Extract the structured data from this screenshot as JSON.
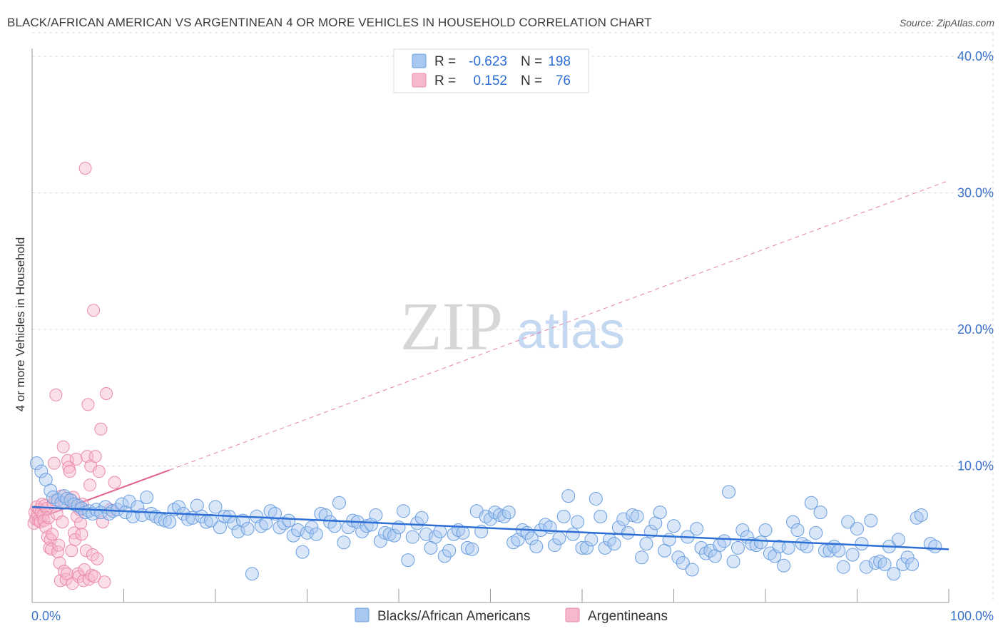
{
  "title": "BLACK/AFRICAN AMERICAN VS ARGENTINEAN 4 OR MORE VEHICLES IN HOUSEHOLD CORRELATION CHART",
  "source": "Source: ZipAtlas.com",
  "watermark": {
    "zip": "ZIP",
    "atlas": "atlas"
  },
  "colors": {
    "blue_fill": "#a9c8f0",
    "blue_stroke": "#6a9ee0",
    "blue_line": "#2e6fd6",
    "pink_fill": "#f6b8cb",
    "pink_stroke": "#ea8aa9",
    "pink_line": "#e0608a",
    "axis_text": "#3a72cc",
    "grid": "#dcdcdc"
  },
  "legend": {
    "rows": [
      {
        "r_label": "R =",
        "r_value": "-0.623",
        "n_label": "N =",
        "n_value": "198"
      },
      {
        "r_label": "R =",
        "r_value": "0.152",
        "n_label": "N =",
        "n_value": "76"
      }
    ]
  },
  "chart_data": {
    "type": "scatter",
    "title": "BLACK/AFRICAN AMERICAN VS ARGENTINEAN 4 OR MORE VEHICLES IN HOUSEHOLD CORRELATION CHART",
    "xlabel": "",
    "ylabel": "4 or more Vehicles in Household",
    "xlim": [
      0,
      100
    ],
    "ylim": [
      0,
      42
    ],
    "x_tick_labels": [
      "0.0%",
      "100.0%"
    ],
    "y_ticks": [
      10,
      20,
      30,
      40
    ],
    "y_tick_labels": [
      "10.0%",
      "20.0%",
      "30.0%",
      "40.0%"
    ],
    "grid": true,
    "legend_position": "top-center",
    "series": [
      {
        "name": "Blacks/African Americans",
        "r": -0.623,
        "n": 198,
        "trend": {
          "x": [
            0,
            100
          ],
          "y": [
            7.0,
            3.9
          ],
          "style": "solid"
        },
        "points": [
          [
            0.5,
            10.2
          ],
          [
            1.0,
            9.6
          ],
          [
            1.5,
            9.0
          ],
          [
            2.0,
            8.2
          ],
          [
            2.3,
            7.7
          ],
          [
            2.8,
            7.5
          ],
          [
            3.2,
            7.3
          ],
          [
            3.5,
            7.8
          ],
          [
            3.8,
            7.6
          ],
          [
            4.2,
            7.5
          ],
          [
            4.6,
            7.2
          ],
          [
            5.0,
            7.1
          ],
          [
            5.4,
            6.9
          ],
          [
            5.8,
            6.6
          ],
          [
            6.2,
            6.7
          ],
          [
            6.6,
            6.5
          ],
          [
            7.0,
            6.8
          ],
          [
            7.5,
            6.6
          ],
          [
            8.0,
            7.0
          ],
          [
            8.4,
            6.5
          ],
          [
            8.8,
            6.7
          ],
          [
            9.3,
            6.8
          ],
          [
            9.8,
            7.2
          ],
          [
            10.2,
            6.6
          ],
          [
            10.6,
            7.4
          ],
          [
            11.0,
            6.3
          ],
          [
            11.5,
            7.0
          ],
          [
            12.0,
            6.4
          ],
          [
            12.5,
            7.7
          ],
          [
            13.0,
            6.5
          ],
          [
            13.5,
            6.3
          ],
          [
            14.0,
            6.1
          ],
          [
            14.5,
            6.0
          ],
          [
            15.0,
            5.9
          ],
          [
            15.5,
            6.8
          ],
          [
            16.0,
            7.0
          ],
          [
            16.5,
            6.5
          ],
          [
            17.0,
            6.1
          ],
          [
            17.5,
            6.2
          ],
          [
            18.0,
            7.1
          ],
          [
            18.5,
            6.3
          ],
          [
            19.0,
            5.9
          ],
          [
            19.5,
            6.0
          ],
          [
            20.0,
            7.0
          ],
          [
            20.5,
            5.5
          ],
          [
            21.0,
            6.3
          ],
          [
            21.5,
            6.3
          ],
          [
            22.0,
            5.8
          ],
          [
            22.5,
            5.2
          ],
          [
            23.0,
            6.0
          ],
          [
            23.5,
            5.4
          ],
          [
            24.0,
            2.1
          ],
          [
            24.5,
            6.3
          ],
          [
            25.0,
            5.6
          ],
          [
            25.5,
            5.8
          ],
          [
            26.0,
            6.7
          ],
          [
            26.5,
            6.5
          ],
          [
            27.0,
            5.5
          ],
          [
            27.5,
            5.8
          ],
          [
            28.0,
            6.0
          ],
          [
            28.5,
            4.9
          ],
          [
            29.0,
            5.3
          ],
          [
            29.5,
            3.7
          ],
          [
            30.0,
            5.1
          ],
          [
            30.5,
            5.5
          ],
          [
            31.0,
            5.0
          ],
          [
            31.5,
            6.5
          ],
          [
            32.0,
            6.4
          ],
          [
            32.5,
            5.9
          ],
          [
            33.0,
            5.6
          ],
          [
            33.5,
            7.3
          ],
          [
            34.0,
            4.4
          ],
          [
            34.5,
            5.5
          ],
          [
            35.0,
            6.0
          ],
          [
            35.5,
            5.9
          ],
          [
            36.0,
            5.2
          ],
          [
            36.5,
            5.6
          ],
          [
            37.0,
            5.7
          ],
          [
            37.5,
            6.4
          ],
          [
            38.0,
            4.5
          ],
          [
            38.5,
            5.1
          ],
          [
            39.0,
            5.0
          ],
          [
            39.5,
            4.9
          ],
          [
            40.0,
            5.5
          ],
          [
            40.5,
            6.7
          ],
          [
            41.0,
            3.1
          ],
          [
            41.5,
            4.8
          ],
          [
            42.0,
            5.8
          ],
          [
            42.5,
            6.2
          ],
          [
            43.0,
            5.0
          ],
          [
            43.5,
            4.0
          ],
          [
            44.0,
            4.8
          ],
          [
            44.5,
            5.2
          ],
          [
            45.0,
            3.4
          ],
          [
            45.5,
            3.8
          ],
          [
            46.0,
            5.0
          ],
          [
            46.5,
            5.3
          ],
          [
            47.0,
            5.1
          ],
          [
            47.5,
            4.0
          ],
          [
            48.0,
            3.9
          ],
          [
            48.5,
            6.7
          ],
          [
            49.0,
            5.2
          ],
          [
            49.5,
            6.3
          ],
          [
            50.0,
            6.1
          ],
          [
            50.5,
            6.6
          ],
          [
            51.0,
            6.4
          ],
          [
            51.5,
            6.3
          ],
          [
            52.0,
            6.6
          ],
          [
            52.5,
            4.4
          ],
          [
            53.0,
            4.6
          ],
          [
            53.5,
            5.3
          ],
          [
            54.0,
            5.1
          ],
          [
            54.5,
            4.7
          ],
          [
            55.0,
            4.1
          ],
          [
            55.5,
            5.3
          ],
          [
            56.0,
            5.7
          ],
          [
            56.5,
            5.5
          ],
          [
            57.0,
            4.2
          ],
          [
            57.5,
            4.7
          ],
          [
            58.0,
            6.3
          ],
          [
            58.5,
            7.8
          ],
          [
            59.0,
            5.0
          ],
          [
            59.5,
            5.9
          ],
          [
            60.0,
            4.0
          ],
          [
            60.5,
            4.0
          ],
          [
            61.0,
            4.6
          ],
          [
            61.5,
            7.6
          ],
          [
            62.0,
            6.3
          ],
          [
            62.5,
            4.0
          ],
          [
            63.0,
            4.6
          ],
          [
            63.5,
            4.3
          ],
          [
            64.0,
            5.5
          ],
          [
            64.5,
            6.1
          ],
          [
            65.0,
            5.1
          ],
          [
            65.5,
            6.4
          ],
          [
            66.0,
            6.3
          ],
          [
            66.5,
            3.3
          ],
          [
            67.0,
            4.3
          ],
          [
            67.5,
            5.2
          ],
          [
            68.0,
            5.8
          ],
          [
            68.5,
            6.6
          ],
          [
            69.0,
            3.8
          ],
          [
            69.5,
            4.6
          ],
          [
            70.0,
            5.6
          ],
          [
            70.5,
            3.3
          ],
          [
            71.0,
            2.9
          ],
          [
            71.5,
            4.8
          ],
          [
            72.0,
            2.4
          ],
          [
            72.5,
            5.4
          ],
          [
            73.0,
            4.0
          ],
          [
            73.5,
            3.6
          ],
          [
            74.0,
            3.8
          ],
          [
            74.5,
            3.4
          ],
          [
            75.0,
            4.2
          ],
          [
            75.5,
            4.5
          ],
          [
            76.0,
            8.1
          ],
          [
            76.5,
            3.0
          ],
          [
            77.0,
            4.0
          ],
          [
            77.5,
            5.3
          ],
          [
            78.0,
            4.8
          ],
          [
            78.5,
            4.3
          ],
          [
            79.0,
            4.2
          ],
          [
            79.5,
            4.4
          ],
          [
            80.0,
            5.3
          ],
          [
            80.5,
            3.6
          ],
          [
            81.0,
            3.4
          ],
          [
            81.5,
            4.1
          ],
          [
            82.0,
            2.7
          ],
          [
            82.5,
            4.0
          ],
          [
            83.0,
            5.9
          ],
          [
            83.5,
            5.3
          ],
          [
            84.0,
            4.3
          ],
          [
            84.5,
            4.1
          ],
          [
            85.0,
            7.3
          ],
          [
            85.5,
            5.1
          ],
          [
            86.0,
            6.6
          ],
          [
            86.5,
            3.8
          ],
          [
            87.0,
            3.8
          ],
          [
            87.5,
            4.1
          ],
          [
            88.0,
            3.8
          ],
          [
            88.5,
            2.6
          ],
          [
            89.0,
            5.9
          ],
          [
            89.5,
            3.5
          ],
          [
            90.0,
            5.4
          ],
          [
            90.5,
            4.3
          ],
          [
            91.0,
            2.6
          ],
          [
            91.5,
            6.0
          ],
          [
            92.0,
            2.9
          ],
          [
            92.5,
            3.0
          ],
          [
            93.0,
            2.8
          ],
          [
            93.5,
            4.1
          ],
          [
            94.0,
            2.1
          ],
          [
            94.5,
            4.6
          ],
          [
            95.0,
            2.8
          ],
          [
            95.5,
            3.3
          ],
          [
            96.0,
            2.8
          ],
          [
            96.5,
            6.2
          ],
          [
            97.0,
            6.4
          ],
          [
            98.0,
            4.3
          ],
          [
            98.5,
            4.1
          ]
        ]
      },
      {
        "name": "Argentineans",
        "r": 0.152,
        "n": 76,
        "trend_solid": {
          "x": [
            0,
            15
          ],
          "y": [
            6.0,
            9.7
          ]
        },
        "trend_dashed": {
          "x": [
            15,
            100
          ],
          "y": [
            9.7,
            30.9
          ]
        },
        "points": [
          [
            0.2,
            5.8
          ],
          [
            0.3,
            6.6
          ],
          [
            0.4,
            6.1
          ],
          [
            0.5,
            7.0
          ],
          [
            0.6,
            6.5
          ],
          [
            0.7,
            6.0
          ],
          [
            0.8,
            6.8
          ],
          [
            0.9,
            5.9
          ],
          [
            1.0,
            6.6
          ],
          [
            1.1,
            7.2
          ],
          [
            1.2,
            6.4
          ],
          [
            1.3,
            6.0
          ],
          [
            1.4,
            7.1
          ],
          [
            1.5,
            5.5
          ],
          [
            1.6,
            6.9
          ],
          [
            1.7,
            4.8
          ],
          [
            1.8,
            6.2
          ],
          [
            1.9,
            4.0
          ],
          [
            2.0,
            4.6
          ],
          [
            2.1,
            3.9
          ],
          [
            2.2,
            5.0
          ],
          [
            2.3,
            7.2
          ],
          [
            2.4,
            10.2
          ],
          [
            2.5,
            7.5
          ],
          [
            2.6,
            15.2
          ],
          [
            2.7,
            6.5
          ],
          [
            2.8,
            3.7
          ],
          [
            2.9,
            4.2
          ],
          [
            3.0,
            2.9
          ],
          [
            3.1,
            1.6
          ],
          [
            3.2,
            7.8
          ],
          [
            3.3,
            5.9
          ],
          [
            3.4,
            11.4
          ],
          [
            3.5,
            2.3
          ],
          [
            3.6,
            7.3
          ],
          [
            3.7,
            1.7
          ],
          [
            3.8,
            2.1
          ],
          [
            3.9,
            10.4
          ],
          [
            4.0,
            9.9
          ],
          [
            4.1,
            9.6
          ],
          [
            4.2,
            7.5
          ],
          [
            4.3,
            3.8
          ],
          [
            4.4,
            1.4
          ],
          [
            4.5,
            7.7
          ],
          [
            4.6,
            5.1
          ],
          [
            4.7,
            4.6
          ],
          [
            4.8,
            10.5
          ],
          [
            4.9,
            6.3
          ],
          [
            5.0,
            2.1
          ],
          [
            5.1,
            1.9
          ],
          [
            5.2,
            6.8
          ],
          [
            5.3,
            5.8
          ],
          [
            5.4,
            5.0
          ],
          [
            5.5,
            7.2
          ],
          [
            5.6,
            1.6
          ],
          [
            5.7,
            2.4
          ],
          [
            5.8,
            31.8
          ],
          [
            5.9,
            3.8
          ],
          [
            6.0,
            10.7
          ],
          [
            6.1,
            14.5
          ],
          [
            6.2,
            1.7
          ],
          [
            6.3,
            8.6
          ],
          [
            6.4,
            10.0
          ],
          [
            6.5,
            2.0
          ],
          [
            6.6,
            3.5
          ],
          [
            6.7,
            21.4
          ],
          [
            6.8,
            1.9
          ],
          [
            6.9,
            10.7
          ],
          [
            7.1,
            3.2
          ],
          [
            7.3,
            9.6
          ],
          [
            7.5,
            12.7
          ],
          [
            7.7,
            5.9
          ],
          [
            7.9,
            1.5
          ],
          [
            8.1,
            15.3
          ],
          [
            8.5,
            6.8
          ],
          [
            9.0,
            8.8
          ]
        ]
      }
    ]
  },
  "bottom_legend": {
    "items": [
      "Blacks/African Americans",
      "Argentineans"
    ]
  }
}
